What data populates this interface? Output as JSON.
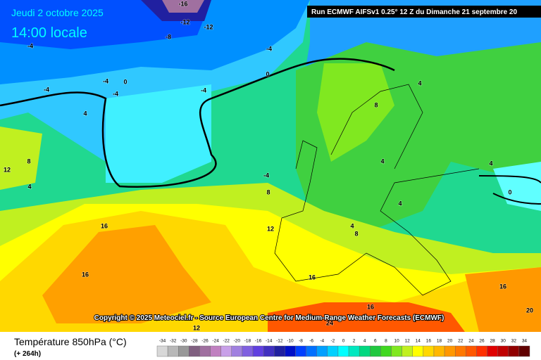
{
  "header": {
    "date": "Jeudi 2 octobre 2025",
    "time": "14:00 locale",
    "run": "Run ECMWF AIFSv1 0.25° 12 Z du Dimanche 21 septembre 20"
  },
  "copyright": "Copyright © 2025 Meteociel.fr - Source European Centre for Medium-Range Weather Forecasts (ECMWF)",
  "legend": {
    "title": "Température 850hPa (°C)",
    "subtitle": "(+ 264h)",
    "scale": [
      -34,
      -32,
      -30,
      -28,
      -26,
      -24,
      -22,
      -20,
      -18,
      -16,
      -14,
      -12,
      -10,
      -8,
      -6,
      -4,
      -2,
      0,
      2,
      4,
      6,
      8,
      10,
      12,
      14,
      16,
      18,
      20,
      22,
      24,
      26,
      28,
      30,
      32,
      34
    ],
    "colors": [
      "#d8d8d8",
      "#b8b8b8",
      "#989898",
      "#806080",
      "#a070a0",
      "#c080c0",
      "#c8a0e8",
      "#a080e0",
      "#8060e0",
      "#6040e0",
      "#4030c0",
      "#2020a0",
      "#0010c8",
      "#0040ff",
      "#0070ff",
      "#00a0ff",
      "#00d0ff",
      "#00ffff",
      "#00e8c0",
      "#00d880",
      "#20c840",
      "#40d820",
      "#80e820",
      "#c0f020",
      "#ffff00",
      "#ffd800",
      "#ffb800",
      "#ff9800",
      "#ff7800",
      "#ff5800",
      "#ff3000",
      "#e00000",
      "#c00000",
      "#900000",
      "#600000"
    ]
  },
  "contour_labels": [
    "-16",
    "-12",
    "-12",
    "-8",
    "-4",
    "-4",
    "0",
    "-4",
    "0",
    "-4",
    "-4",
    "-4",
    "4",
    "8",
    "4",
    "12",
    "-4",
    "8",
    "4",
    "8",
    "4",
    "4",
    "0",
    "4",
    "4",
    "8",
    "16",
    "12",
    "16",
    "16",
    "16",
    "16",
    "20",
    "24",
    "12"
  ]
}
